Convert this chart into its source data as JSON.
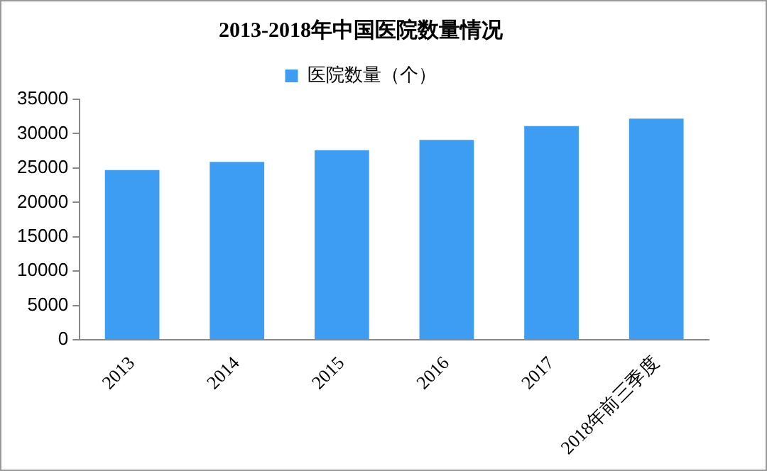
{
  "chart_data": {
    "type": "bar",
    "title": "2013-2018年中国医院数量情况",
    "categories": [
      "2013",
      "2014",
      "2015",
      "2016",
      "2017",
      "2018年前三季度"
    ],
    "series": [
      {
        "name": "医院数量（个）",
        "color": "#3d9df2",
        "values": [
          24700,
          25900,
          27600,
          29100,
          31100,
          32200
        ]
      }
    ],
    "ylim": [
      0,
      35000
    ],
    "yticks": [
      0,
      5000,
      10000,
      15000,
      20000,
      25000,
      30000,
      35000
    ],
    "grid": false,
    "legend": "top"
  }
}
